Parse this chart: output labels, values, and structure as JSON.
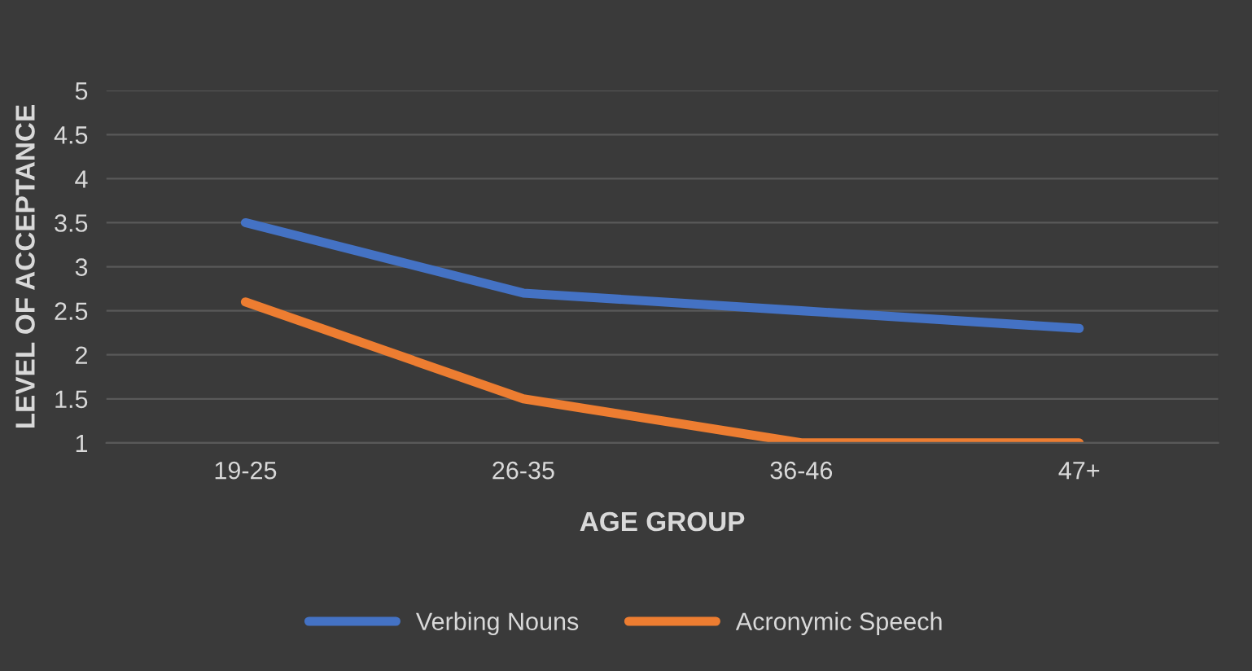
{
  "chart_data": {
    "type": "line",
    "xlabel": "AGE GROUP",
    "ylabel": "LEVEL OF ACCEPTANCE",
    "categories": [
      "19-25",
      "26-35",
      "36-46",
      "47+"
    ],
    "series": [
      {
        "name": "Verbing Nouns",
        "color": "#4472c4",
        "values": [
          3.5,
          2.7,
          2.5,
          2.3
        ]
      },
      {
        "name": "Acronymic Speech",
        "color": "#ed7d31",
        "values": [
          2.6,
          1.5,
          1.0,
          1.0
        ]
      }
    ],
    "ylim": [
      1,
      5
    ],
    "yticks": [
      1,
      1.5,
      2,
      2.5,
      3,
      3.5,
      4,
      4.5,
      5
    ],
    "grid": "y",
    "legend": "bottom",
    "marker": "none",
    "line_style": "solid"
  }
}
